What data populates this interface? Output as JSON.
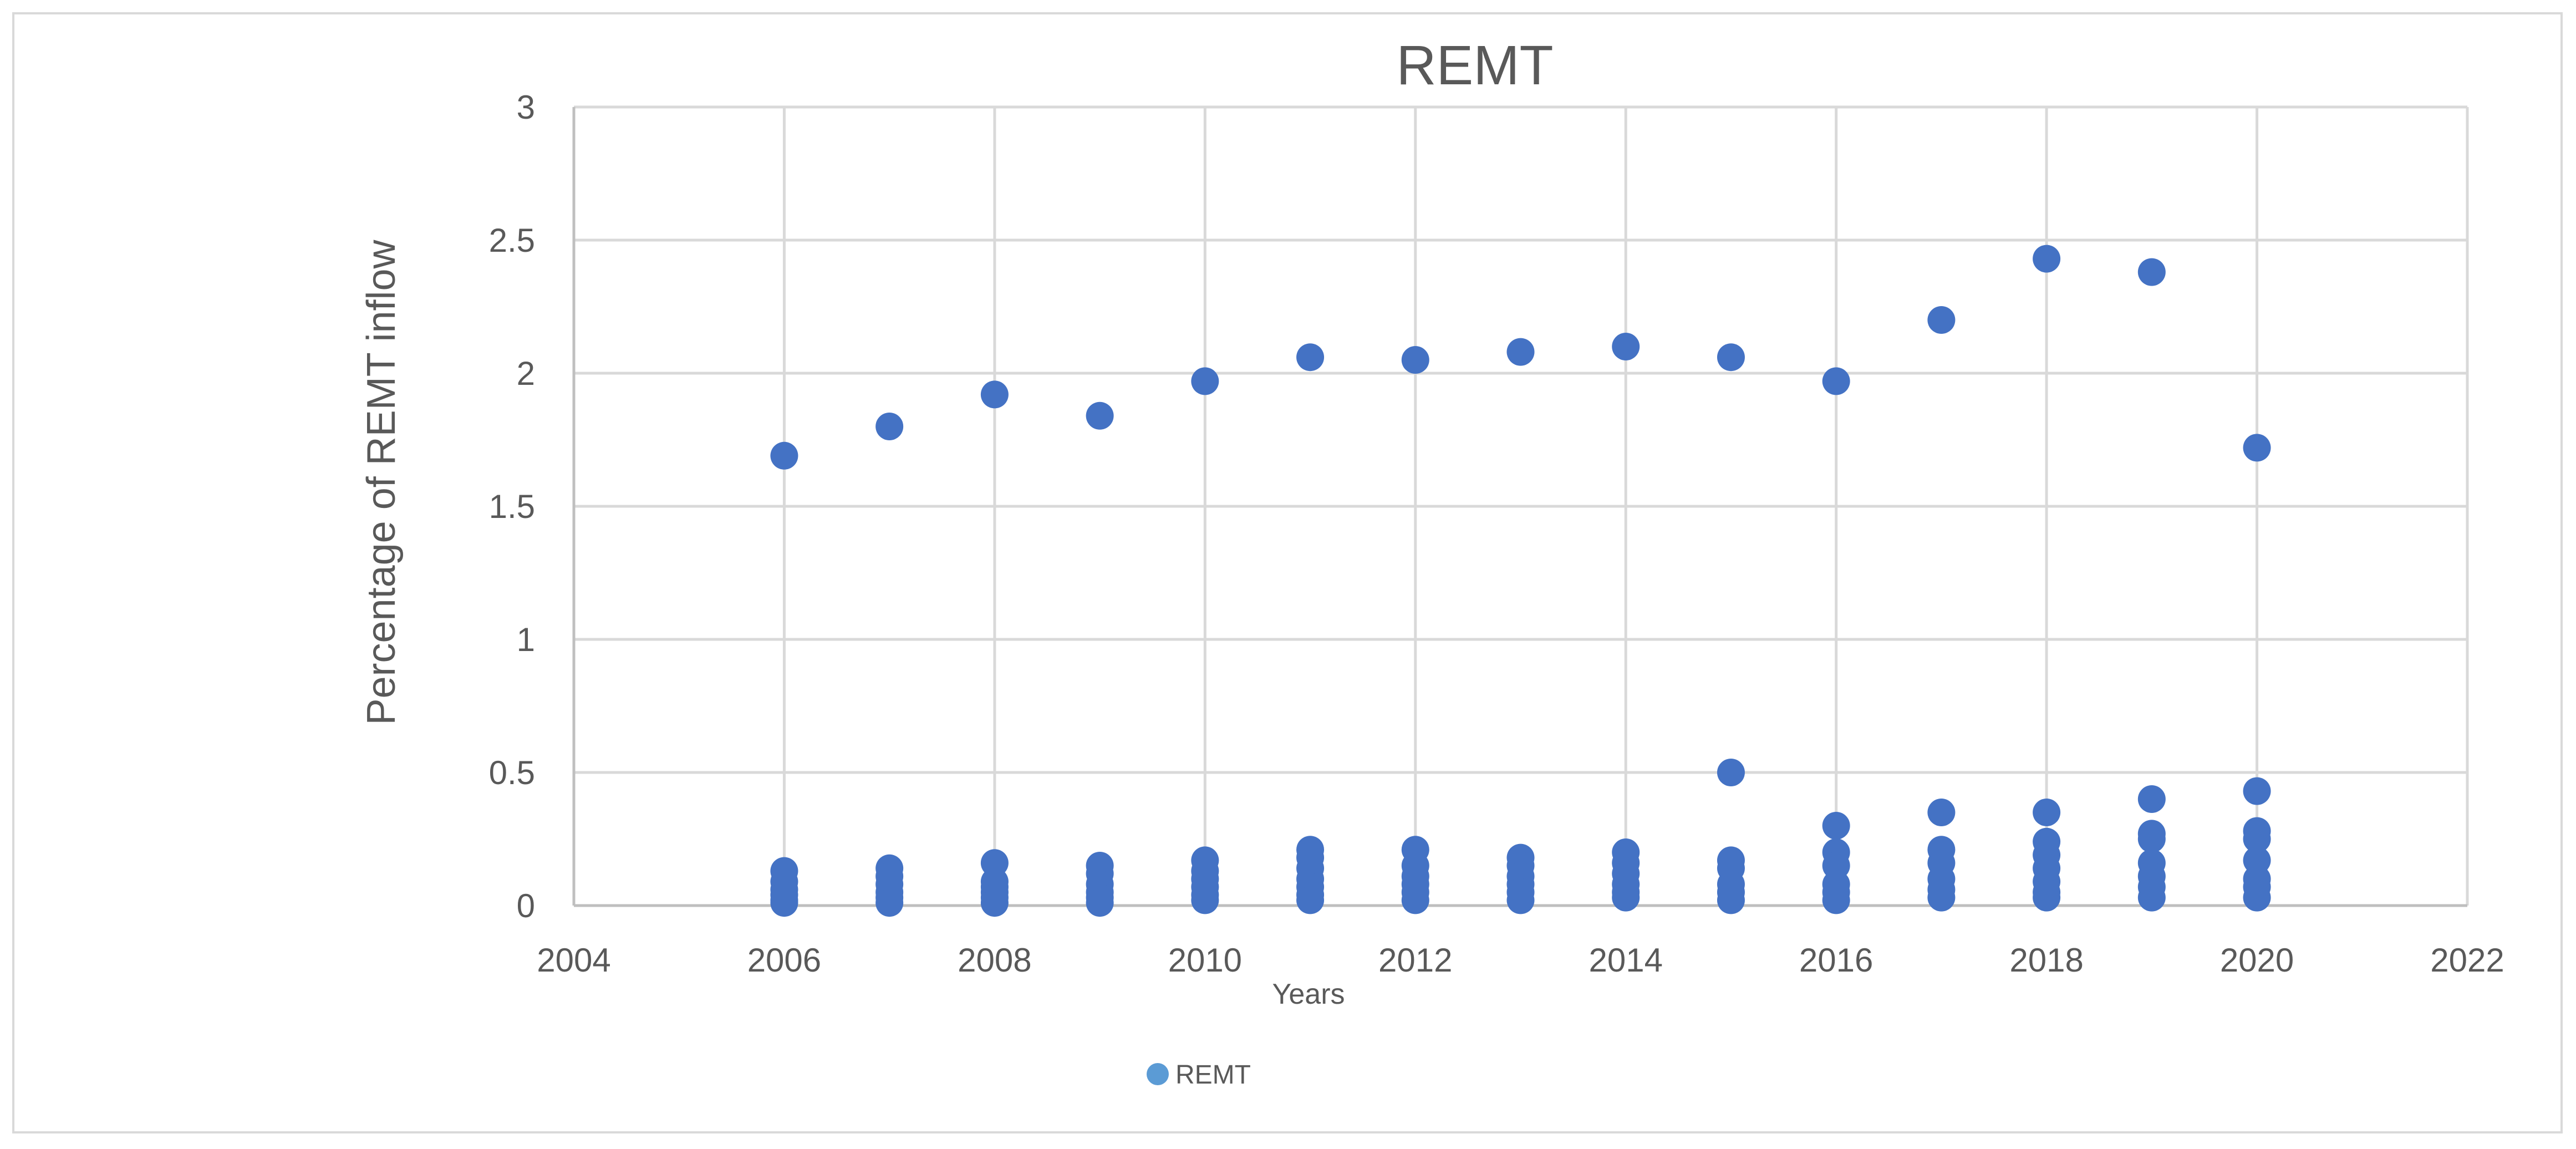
{
  "chart_data": {
    "type": "scatter",
    "title": "REMT",
    "xlabel": "Years",
    "ylabel": "Percentage of REMT inflow",
    "xlim": [
      2004,
      2022
    ],
    "ylim": [
      0,
      3
    ],
    "xticks": [
      2004,
      2006,
      2008,
      2010,
      2012,
      2014,
      2016,
      2018,
      2020,
      2022
    ],
    "yticks": [
      0,
      0.5,
      1,
      1.5,
      2,
      2.5,
      3
    ],
    "xtick_labels": [
      "2004",
      "2006",
      "2008",
      "2010",
      "2012",
      "2014",
      "2016",
      "2018",
      "2020",
      "2022"
    ],
    "ytick_labels": [
      "0",
      "0.5",
      "1",
      "1.5",
      "2",
      "2.5",
      "3"
    ],
    "grid": true,
    "legend_position": "bottom",
    "series": [
      {
        "name": "REMT",
        "color": "#4472C4",
        "points": [
          [
            2006,
            1.69
          ],
          [
            2006,
            0.13
          ],
          [
            2006,
            0.09
          ],
          [
            2006,
            0.06
          ],
          [
            2006,
            0.04
          ],
          [
            2006,
            0.02
          ],
          [
            2006,
            0.01
          ],
          [
            2007,
            1.8
          ],
          [
            2007,
            0.14
          ],
          [
            2007,
            0.11
          ],
          [
            2007,
            0.08
          ],
          [
            2007,
            0.05
          ],
          [
            2007,
            0.03
          ],
          [
            2007,
            0.01
          ],
          [
            2008,
            1.92
          ],
          [
            2008,
            0.16
          ],
          [
            2008,
            0.09
          ],
          [
            2008,
            0.07
          ],
          [
            2008,
            0.05
          ],
          [
            2008,
            0.03
          ],
          [
            2008,
            0.01
          ],
          [
            2009,
            1.84
          ],
          [
            2009,
            0.15
          ],
          [
            2009,
            0.12
          ],
          [
            2009,
            0.08
          ],
          [
            2009,
            0.05
          ],
          [
            2009,
            0.03
          ],
          [
            2009,
            0.01
          ],
          [
            2010,
            1.97
          ],
          [
            2010,
            0.17
          ],
          [
            2010,
            0.13
          ],
          [
            2010,
            0.1
          ],
          [
            2010,
            0.07
          ],
          [
            2010,
            0.04
          ],
          [
            2010,
            0.02
          ],
          [
            2011,
            2.06
          ],
          [
            2011,
            0.21
          ],
          [
            2011,
            0.18
          ],
          [
            2011,
            0.14
          ],
          [
            2011,
            0.1
          ],
          [
            2011,
            0.07
          ],
          [
            2011,
            0.04
          ],
          [
            2011,
            0.02
          ],
          [
            2012,
            2.05
          ],
          [
            2012,
            0.21
          ],
          [
            2012,
            0.15
          ],
          [
            2012,
            0.11
          ],
          [
            2012,
            0.08
          ],
          [
            2012,
            0.05
          ],
          [
            2012,
            0.02
          ],
          [
            2013,
            2.08
          ],
          [
            2013,
            0.18
          ],
          [
            2013,
            0.15
          ],
          [
            2013,
            0.11
          ],
          [
            2013,
            0.08
          ],
          [
            2013,
            0.05
          ],
          [
            2013,
            0.02
          ],
          [
            2014,
            2.1
          ],
          [
            2014,
            0.2
          ],
          [
            2014,
            0.16
          ],
          [
            2014,
            0.12
          ],
          [
            2014,
            0.08
          ],
          [
            2014,
            0.05
          ],
          [
            2014,
            0.03
          ],
          [
            2015,
            2.06
          ],
          [
            2015,
            0.5
          ],
          [
            2015,
            0.17
          ],
          [
            2015,
            0.14
          ],
          [
            2015,
            0.08
          ],
          [
            2015,
            0.05
          ],
          [
            2015,
            0.02
          ],
          [
            2016,
            1.97
          ],
          [
            2016,
            0.3
          ],
          [
            2016,
            0.2
          ],
          [
            2016,
            0.15
          ],
          [
            2016,
            0.08
          ],
          [
            2016,
            0.05
          ],
          [
            2016,
            0.02
          ],
          [
            2017,
            2.2
          ],
          [
            2017,
            0.35
          ],
          [
            2017,
            0.21
          ],
          [
            2017,
            0.16
          ],
          [
            2017,
            0.1
          ],
          [
            2017,
            0.06
          ],
          [
            2017,
            0.03
          ],
          [
            2018,
            2.43
          ],
          [
            2018,
            0.35
          ],
          [
            2018,
            0.24
          ],
          [
            2018,
            0.19
          ],
          [
            2018,
            0.14
          ],
          [
            2018,
            0.09
          ],
          [
            2018,
            0.05
          ],
          [
            2018,
            0.03
          ],
          [
            2019,
            2.38
          ],
          [
            2019,
            0.4
          ],
          [
            2019,
            0.27
          ],
          [
            2019,
            0.25
          ],
          [
            2019,
            0.16
          ],
          [
            2019,
            0.11
          ],
          [
            2019,
            0.07
          ],
          [
            2019,
            0.03
          ],
          [
            2020,
            1.72
          ],
          [
            2020,
            0.43
          ],
          [
            2020,
            0.28
          ],
          [
            2020,
            0.25
          ],
          [
            2020,
            0.17
          ],
          [
            2020,
            0.1
          ],
          [
            2020,
            0.07
          ],
          [
            2020,
            0.03
          ]
        ]
      }
    ]
  }
}
